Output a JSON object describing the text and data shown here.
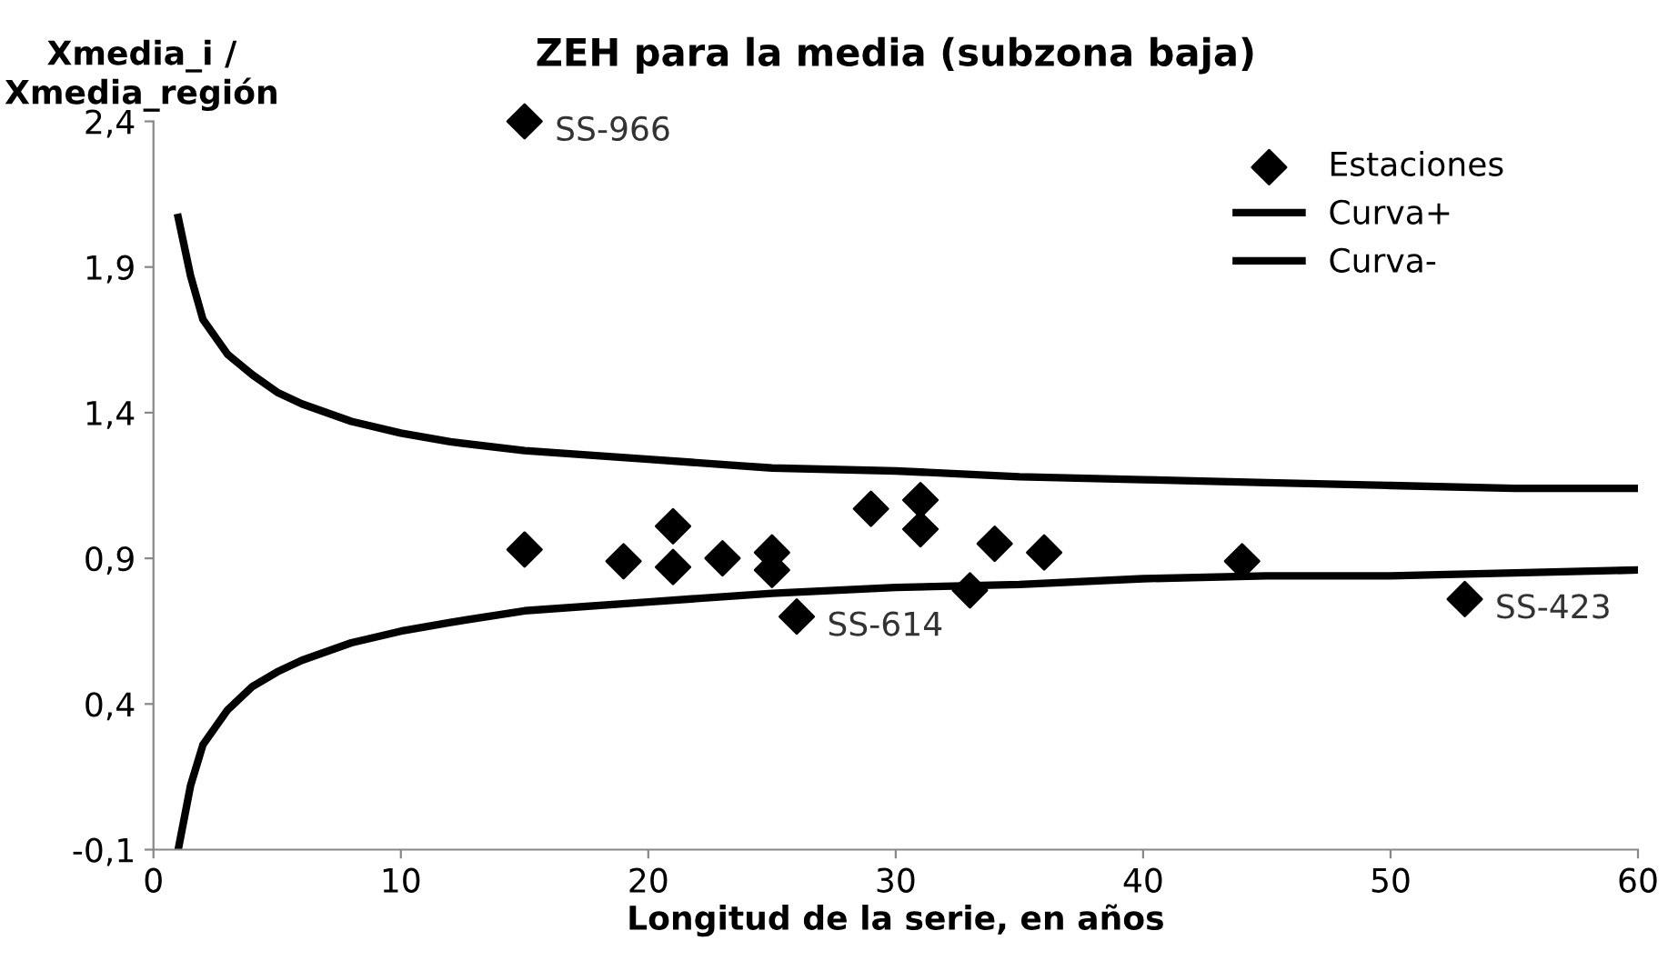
{
  "chart_data": {
    "type": "scatter",
    "title": "ZEH para la media (subzona baja)",
    "xlabel": "Longitud de la serie, en años",
    "ylabel": "Xmedia_i /\nXmedia_región",
    "series": [
      {
        "name": "Estaciones",
        "marker": "diamond",
        "color": "#000000",
        "x": [
          15,
          15,
          19,
          21,
          21,
          23,
          25,
          25,
          26,
          29,
          31,
          31,
          33,
          34,
          36,
          44,
          53
        ],
        "values": [
          2.4,
          0.93,
          0.89,
          1.01,
          0.87,
          0.9,
          0.92,
          0.86,
          0.7,
          1.07,
          1.1,
          1.0,
          0.79,
          0.95,
          0.92,
          0.89,
          0.76
        ]
      },
      {
        "name": "Curva+",
        "type": "line",
        "marker": "none",
        "color": "#000000",
        "x": [
          1,
          1.5,
          2,
          3,
          4,
          5,
          6,
          8,
          10,
          12,
          15,
          20,
          25,
          30,
          35,
          40,
          45,
          50,
          55,
          60
        ],
        "values": [
          2.07,
          1.87,
          1.72,
          1.6,
          1.53,
          1.47,
          1.43,
          1.37,
          1.33,
          1.3,
          1.27,
          1.24,
          1.21,
          1.2,
          1.18,
          1.17,
          1.16,
          1.15,
          1.14,
          1.14
        ]
      },
      {
        "name": "Curva-",
        "type": "line",
        "marker": "none",
        "color": "#000000",
        "x": [
          1,
          1.5,
          2,
          3,
          4,
          5,
          6,
          8,
          10,
          12,
          15,
          20,
          25,
          30,
          35,
          40,
          45,
          50,
          55,
          60
        ],
        "values": [
          -0.1,
          0.12,
          0.26,
          0.38,
          0.46,
          0.51,
          0.55,
          0.61,
          0.65,
          0.68,
          0.72,
          0.75,
          0.78,
          0.8,
          0.81,
          0.83,
          0.84,
          0.84,
          0.85,
          0.86
        ]
      }
    ],
    "annotations": [
      {
        "text": "SS-966",
        "x": 15,
        "y": 2.4
      },
      {
        "text": "SS-614",
        "x": 26,
        "y": 0.7
      },
      {
        "text": "SS-423",
        "x": 53,
        "y": 0.76
      }
    ],
    "xlim": [
      0,
      60
    ],
    "xticks": [
      0,
      10,
      20,
      30,
      40,
      50,
      60
    ],
    "ylim": [
      -0.1,
      2.4
    ],
    "yticks": [
      {
        "value": -0.1,
        "label": "-0,1"
      },
      {
        "value": 0.4,
        "label": "0,4"
      },
      {
        "value": 0.9,
        "label": "0,9"
      },
      {
        "value": 1.4,
        "label": "1,4"
      },
      {
        "value": 1.9,
        "label": "1,9"
      },
      {
        "value": 2.4,
        "label": "2,4"
      }
    ],
    "grid": false,
    "legend": "top right"
  }
}
